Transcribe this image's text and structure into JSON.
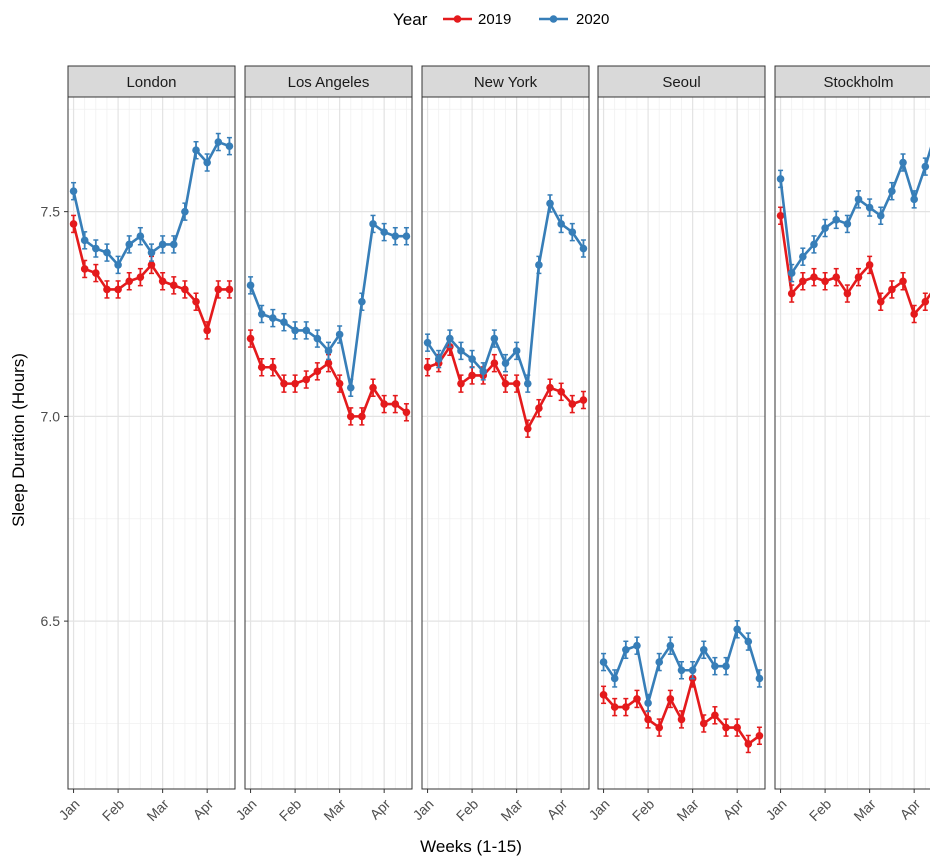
{
  "chart_data": {
    "type": "line",
    "legend": {
      "title": "Year",
      "position": "top",
      "entries": [
        {
          "name": "2019",
          "color": "#E41A1C"
        },
        {
          "name": "2020",
          "color": "#377EB8"
        }
      ]
    },
    "xlabel": "Weeks (1-15)",
    "ylabel": "Sleep Duration (Hours)",
    "y_ticks": [
      "6.5",
      "7.0",
      "7.5"
    ],
    "y_tick_values": [
      6.5,
      7.0,
      7.5
    ],
    "ylim": [
      6.09,
      7.78
    ],
    "x_ticks": [
      {
        "label": "Jan",
        "week": 1
      },
      {
        "label": "Feb",
        "week": 5
      },
      {
        "label": "Mar",
        "week": 9
      },
      {
        "label": "Apr",
        "week": 13
      }
    ],
    "xlim": [
      0.5,
      15.5
    ],
    "grid": true,
    "facets": [
      {
        "title": "London",
        "series": [
          {
            "name": "2019",
            "values": [
              7.47,
              7.36,
              7.35,
              7.31,
              7.31,
              7.33,
              7.34,
              7.37,
              7.33,
              7.32,
              7.31,
              7.28,
              7.21,
              7.31,
              7.31
            ]
          },
          {
            "name": "2020",
            "values": [
              7.55,
              7.43,
              7.41,
              7.4,
              7.37,
              7.42,
              7.44,
              7.4,
              7.42,
              7.42,
              7.5,
              7.65,
              7.62,
              7.67,
              7.66
            ]
          }
        ]
      },
      {
        "title": "Los Angeles",
        "series": [
          {
            "name": "2019",
            "values": [
              7.19,
              7.12,
              7.12,
              7.08,
              7.08,
              7.09,
              7.11,
              7.13,
              7.08,
              7.0,
              7.0,
              7.07,
              7.03,
              7.03,
              7.01
            ]
          },
          {
            "name": "2020",
            "values": [
              7.32,
              7.25,
              7.24,
              7.23,
              7.21,
              7.21,
              7.19,
              7.16,
              7.2,
              7.07,
              7.28,
              7.47,
              7.45,
              7.44,
              7.44
            ]
          }
        ]
      },
      {
        "title": "New York",
        "series": [
          {
            "name": "2019",
            "values": [
              7.12,
              7.13,
              7.17,
              7.08,
              7.1,
              7.1,
              7.13,
              7.08,
              7.08,
              6.97,
              7.02,
              7.07,
              7.06,
              7.03,
              7.04
            ]
          },
          {
            "name": "2020",
            "values": [
              7.18,
              7.14,
              7.19,
              7.16,
              7.14,
              7.11,
              7.19,
              7.13,
              7.16,
              7.08,
              7.37,
              7.52,
              7.47,
              7.45,
              7.41
            ]
          }
        ]
      },
      {
        "title": "Seoul",
        "series": [
          {
            "name": "2019",
            "values": [
              6.32,
              6.29,
              6.29,
              6.31,
              6.26,
              6.24,
              6.31,
              6.26,
              6.36,
              6.25,
              6.27,
              6.24,
              6.24,
              6.2,
              6.22
            ]
          },
          {
            "name": "2020",
            "values": [
              6.4,
              6.36,
              6.43,
              6.44,
              6.3,
              6.4,
              6.44,
              6.38,
              6.38,
              6.43,
              6.39,
              6.39,
              6.48,
              6.45,
              6.36
            ]
          }
        ]
      },
      {
        "title": "Stockholm",
        "series": [
          {
            "name": "2019",
            "values": [
              7.49,
              7.3,
              7.33,
              7.34,
              7.33,
              7.34,
              7.3,
              7.34,
              7.37,
              7.28,
              7.31,
              7.33,
              7.25,
              7.28,
              7.32
            ]
          },
          {
            "name": "2020",
            "values": [
              7.58,
              7.35,
              7.39,
              7.42,
              7.46,
              7.48,
              7.47,
              7.53,
              7.51,
              7.49,
              7.55,
              7.62,
              7.53,
              7.61,
              7.7
            ]
          }
        ]
      }
    ]
  }
}
